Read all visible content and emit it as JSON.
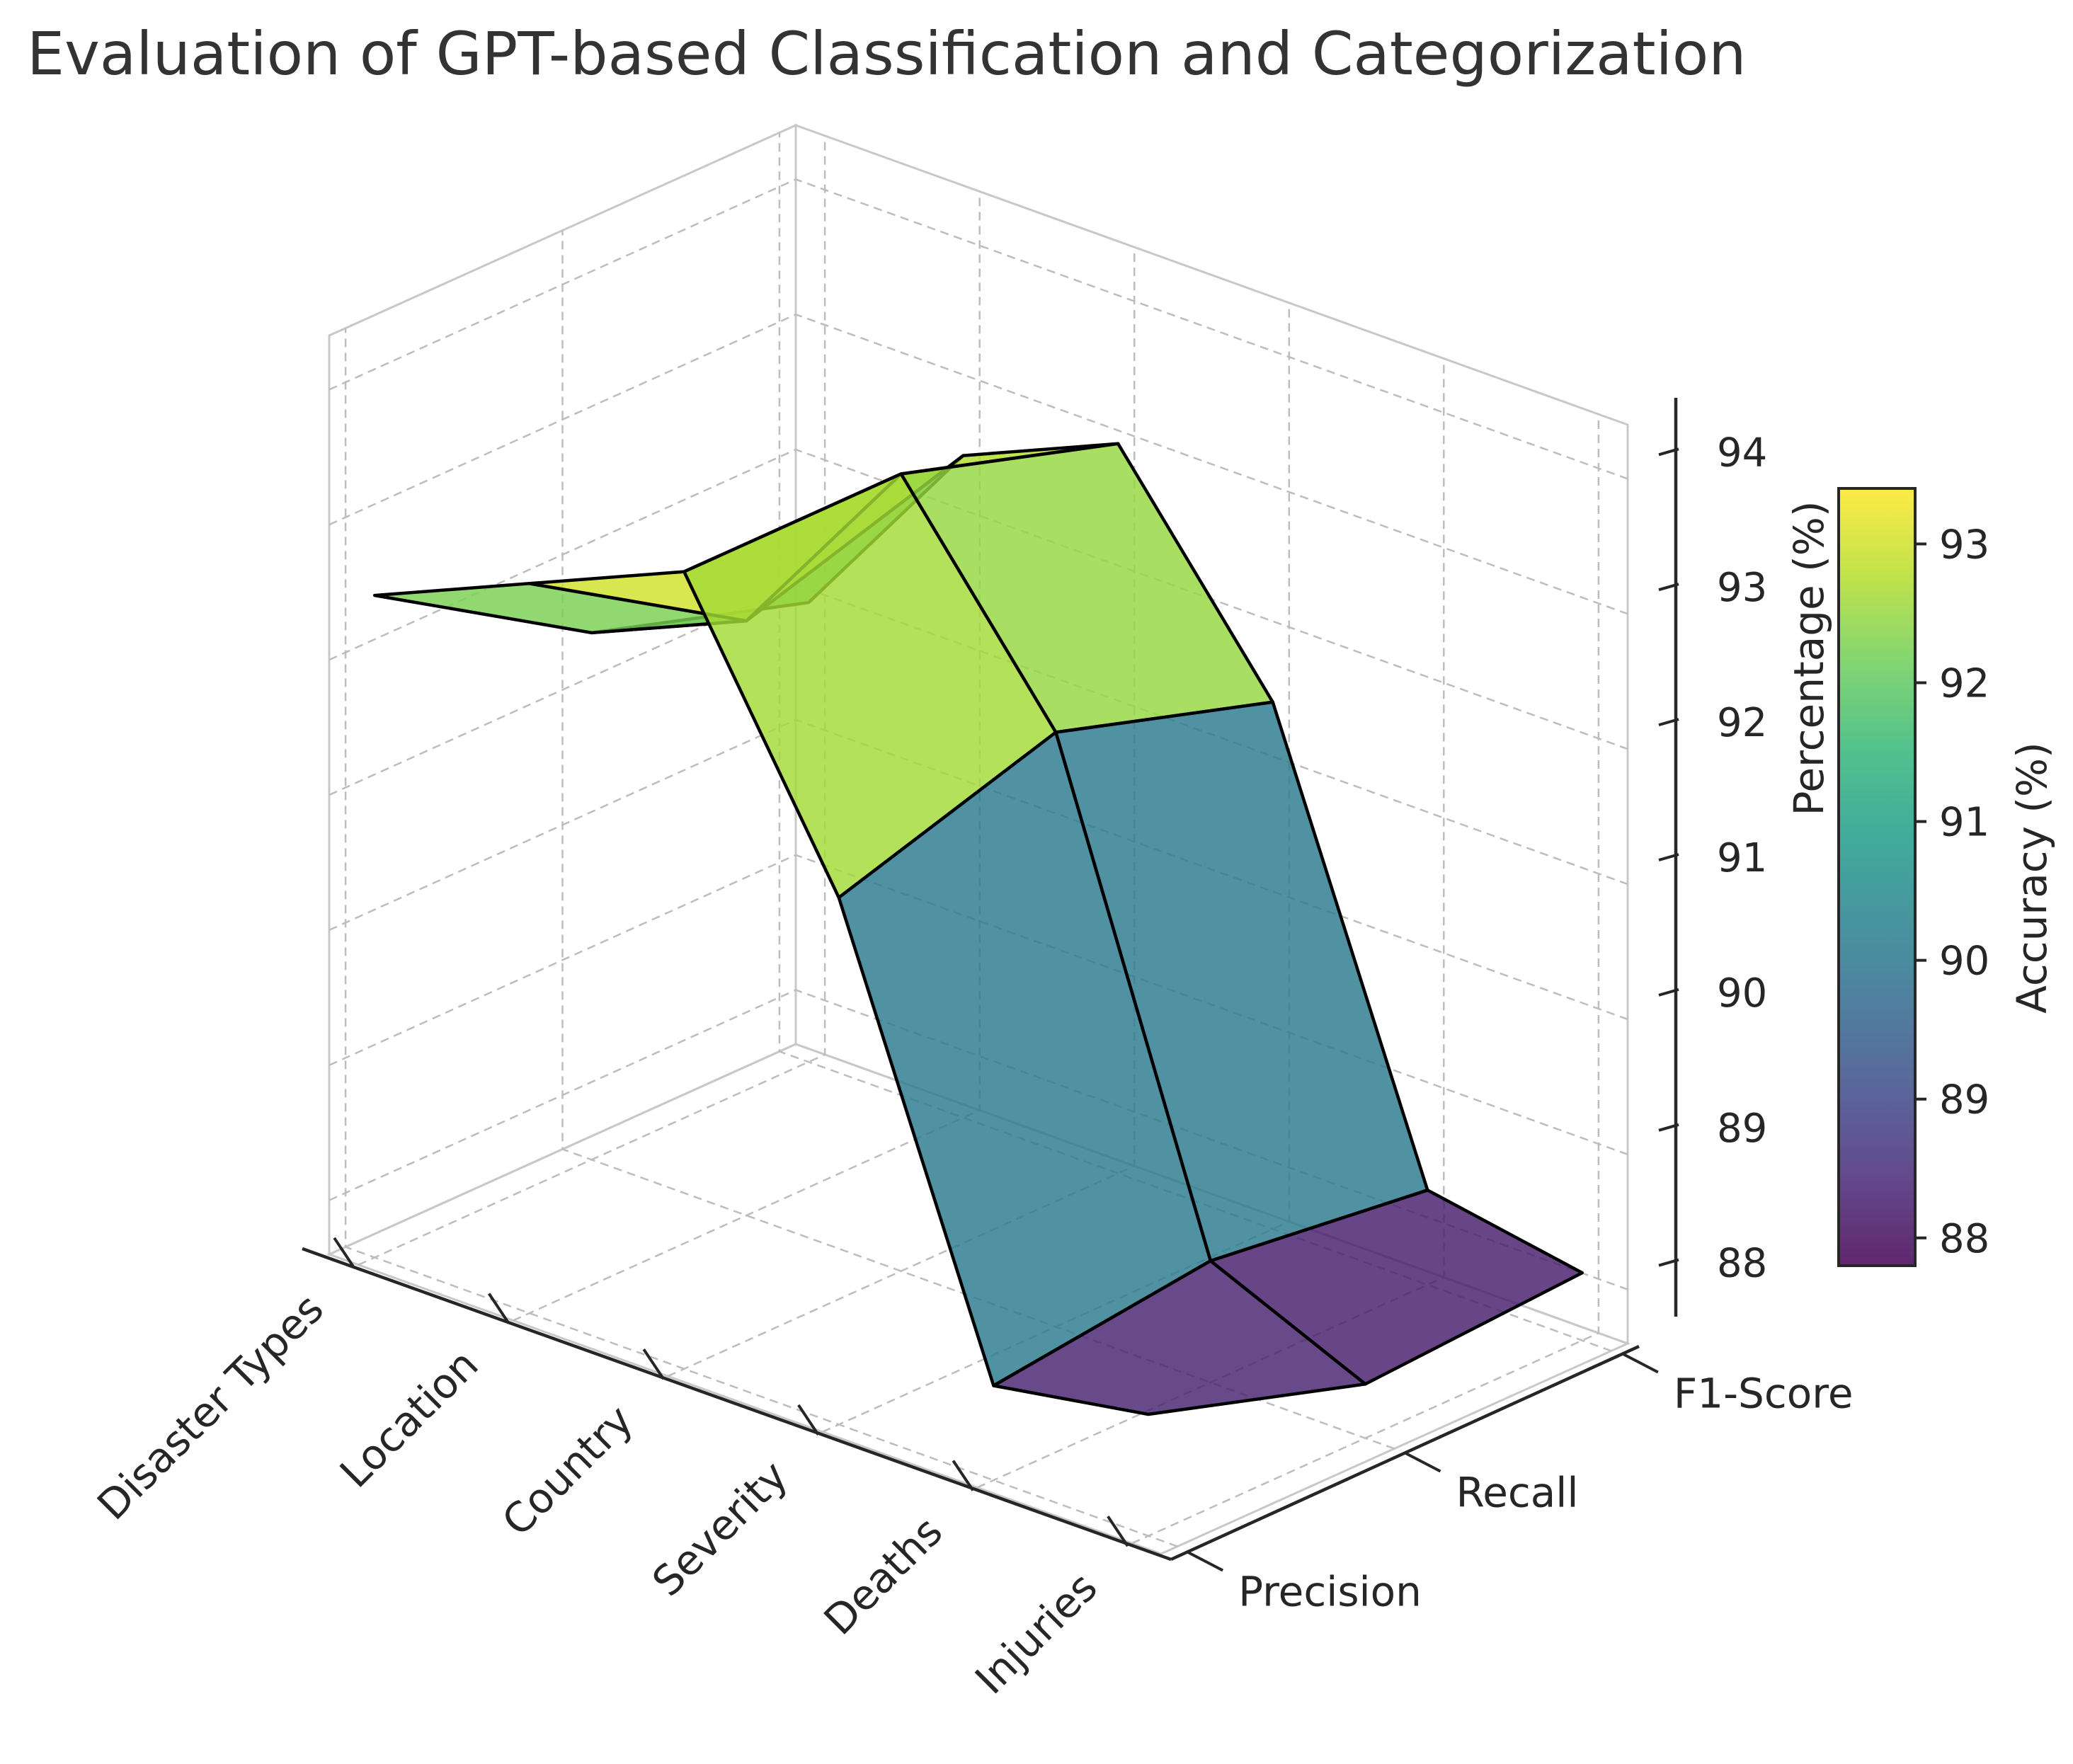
{
  "chart_data": {
    "type": "surface3d",
    "title": "Evaluation of GPT-based Classification and Categorization",
    "categories": [
      "Disaster Types",
      "Location",
      "Country",
      "Severity",
      "Deaths",
      "Injuries"
    ],
    "metrics": [
      "Precision",
      "Recall",
      "F1-Score"
    ],
    "series": [
      {
        "name": "Precision",
        "values": [
          92.5,
          93.0,
          93.5,
          91.5,
          88.3,
          88.5
        ]
      },
      {
        "name": "Recall",
        "values": [
          91.5,
          92.0,
          93.5,
          92.0,
          88.5,
          88.0
        ]
      },
      {
        "name": "F1-Score",
        "values": [
          91.0,
          92.5,
          93.0,
          91.5,
          88.3,
          88.1
        ]
      }
    ],
    "zlabel": "Percentage (%)",
    "zticks": [
      "88",
      "89",
      "90",
      "91",
      "92",
      "93",
      "94"
    ],
    "zlim": [
      87.6,
      94.4
    ],
    "colorbar": {
      "label": "Accuracy (%)",
      "ticks": [
        "88",
        "89",
        "90",
        "91",
        "92",
        "93"
      ],
      "range": [
        87.8,
        93.4
      ],
      "colormap": [
        "#440154",
        "#482878",
        "#3e4a89",
        "#31688e",
        "#26828e",
        "#1f9e89",
        "#35b779",
        "#6ece58",
        "#b5de2b",
        "#fde725"
      ]
    },
    "grid": true
  }
}
